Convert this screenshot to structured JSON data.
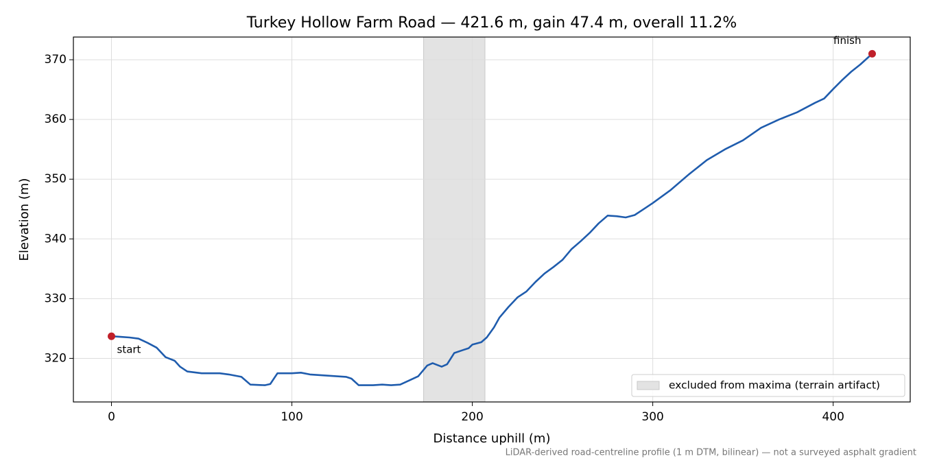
{
  "chart_data": {
    "type": "line",
    "title": "Turkey Hollow Farm Road — 421.6 m, gain 47.4 m, overall 11.2%",
    "xlabel": "Distance uphill (m)",
    "ylabel": "Elevation (m)",
    "footnote": "LiDAR-derived road-centreline profile (1 m DTM, bilinear) — not a surveyed asphalt gradient",
    "x": [
      0,
      5,
      10,
      15,
      20,
      25,
      30,
      35,
      38,
      42,
      50,
      60,
      65,
      72,
      77,
      85,
      88,
      92,
      100,
      105,
      110,
      120,
      130,
      133,
      137,
      145,
      150,
      155,
      160,
      165,
      170,
      175,
      178,
      183,
      186,
      190,
      195,
      198,
      200,
      205,
      208,
      212,
      215,
      220,
      225,
      230,
      235,
      240,
      245,
      250,
      255,
      260,
      265,
      270,
      275,
      280,
      285,
      290,
      295,
      300,
      310,
      320,
      330,
      340,
      350,
      360,
      370,
      380,
      390,
      395,
      400,
      405,
      410,
      415,
      421.6
    ],
    "values": [
      323.7,
      323.6,
      323.5,
      323.3,
      322.6,
      321.8,
      320.2,
      319.6,
      318.6,
      317.8,
      317.5,
      317.5,
      317.3,
      316.9,
      315.6,
      315.5,
      315.7,
      317.5,
      317.5,
      317.6,
      317.3,
      317.1,
      316.9,
      316.6,
      315.5,
      315.5,
      315.6,
      315.5,
      315.6,
      316.3,
      317.0,
      318.8,
      319.2,
      318.6,
      319.0,
      320.9,
      321.4,
      321.7,
      322.3,
      322.7,
      323.5,
      325.2,
      326.8,
      328.6,
      330.2,
      331.2,
      332.8,
      334.2,
      335.3,
      336.5,
      338.3,
      339.6,
      341.0,
      342.6,
      343.9,
      343.8,
      343.6,
      344.0,
      345.0,
      346.0,
      348.2,
      350.8,
      353.2,
      355.0,
      356.5,
      358.6,
      360.0,
      361.2,
      362.8,
      363.5,
      365.1,
      366.6,
      368.0,
      369.2,
      371.0
    ],
    "color": "#1f5cad",
    "marker_color": "#c0202a",
    "annotations": [
      "start",
      "finish"
    ],
    "shaded_region": {
      "x": [
        173,
        207
      ],
      "label": "excluded from maxima (terrain artifact)",
      "color": "#e3e3e3"
    },
    "legend": "lower right",
    "xlim": [
      -21.1,
      442.7
    ],
    "ylim": [
      312.7,
      373.8
    ],
    "xticks": [
      0,
      100,
      200,
      300,
      400
    ],
    "yticks": [
      320,
      330,
      340,
      350,
      360,
      370
    ],
    "grid": true
  }
}
